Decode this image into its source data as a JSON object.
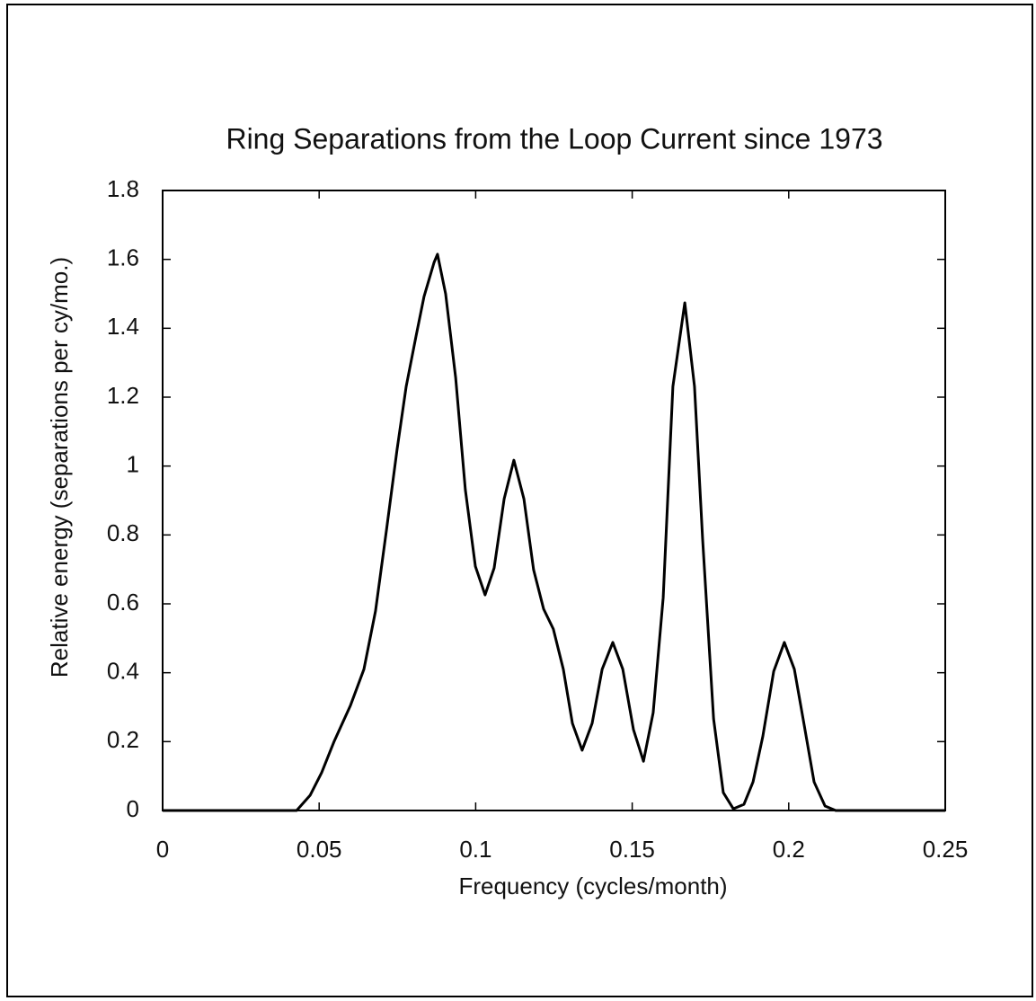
{
  "chart_data": {
    "type": "line",
    "title": "Ring Separations from the Loop Current since 1973",
    "xlabel": "Frequency  (cycles/month)",
    "ylabel": "Relative energy  (separations per cy/mo.)",
    "color": "#000000",
    "x": [
      0,
      0.0428,
      0.0471,
      0.0508,
      0.0548,
      0.06,
      0.0643,
      0.068,
      0.0715,
      0.0749,
      0.0778,
      0.0809,
      0.0835,
      0.0867,
      0.0878,
      0.0904,
      0.0936,
      0.0967,
      0.0999,
      0.103,
      0.1059,
      0.1091,
      0.1122,
      0.1154,
      0.1185,
      0.1217,
      0.1248,
      0.128,
      0.1309,
      0.134,
      0.1372,
      0.1404,
      0.1438,
      0.147,
      0.1504,
      0.1536,
      0.1567,
      0.1599,
      0.163,
      0.1668,
      0.1699,
      0.1725,
      0.176,
      0.1791,
      0.1823,
      0.1857,
      0.1886,
      0.1917,
      0.1952,
      0.1986,
      0.2018,
      0.205,
      0.2081,
      0.2116,
      0.215,
      0.25
    ],
    "values": [
      0,
      0,
      0.044,
      0.11,
      0.201,
      0.305,
      0.41,
      0.579,
      0.814,
      1.049,
      1.231,
      1.375,
      1.492,
      1.591,
      1.615,
      1.5,
      1.257,
      0.931,
      0.709,
      0.626,
      0.704,
      0.905,
      1.017,
      0.905,
      0.699,
      0.585,
      0.527,
      0.41,
      0.253,
      0.175,
      0.253,
      0.41,
      0.488,
      0.41,
      0.235,
      0.143,
      0.284,
      0.618,
      1.231,
      1.474,
      1.231,
      0.787,
      0.266,
      0.052,
      0.005,
      0.018,
      0.083,
      0.214,
      0.404,
      0.488,
      0.41,
      0.245,
      0.083,
      0.013,
      0,
      0
    ],
    "xlim": [
      0,
      0.25
    ],
    "xticks": [
      0,
      0.05,
      0.1,
      0.15,
      0.2,
      0.25
    ],
    "ylim": [
      0,
      1.8
    ],
    "yticks": [
      0,
      0.2,
      0.4,
      0.6,
      0.8,
      1,
      1.2,
      1.4,
      1.6,
      1.8
    ]
  }
}
